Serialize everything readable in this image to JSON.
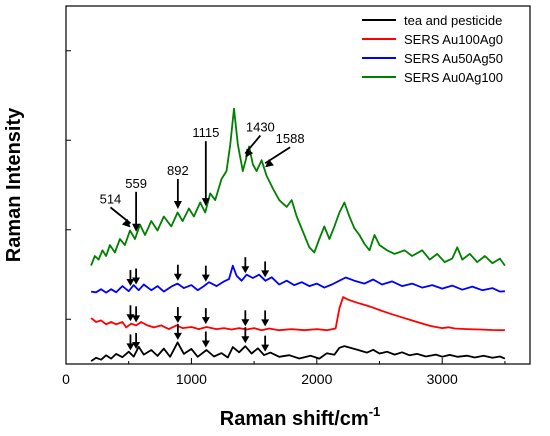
{
  "chart_data": {
    "type": "line",
    "xlabel": "Raman shift/cm",
    "xlabel_sup": "-1",
    "ylabel": "Raman Intensity",
    "xlim": [
      0,
      3700
    ],
    "x_ticks": [
      0,
      1000,
      2000,
      3000
    ],
    "y_ticks_shown": false,
    "legend_position": "top-right",
    "series": [
      {
        "name": "tea and pesticide",
        "color": "#000000",
        "points": [
          [
            200,
            2.6
          ],
          [
            240,
            5.5
          ],
          [
            280,
            3.8
          ],
          [
            320,
            7.8
          ],
          [
            360,
            4.8
          ],
          [
            400,
            9
          ],
          [
            450,
            6.1
          ],
          [
            500,
            11
          ],
          [
            540,
            6.6
          ],
          [
            580,
            15.4
          ],
          [
            620,
            8.4
          ],
          [
            680,
            12.5
          ],
          [
            730,
            7.2
          ],
          [
            780,
            13.8
          ],
          [
            830,
            6.4
          ],
          [
            890,
            19.3
          ],
          [
            940,
            9
          ],
          [
            1000,
            13.5
          ],
          [
            1050,
            6.4
          ],
          [
            1120,
            12.5
          ],
          [
            1180,
            6.7
          ],
          [
            1240,
            9.7
          ],
          [
            1290,
            5.8
          ],
          [
            1330,
            15.1
          ],
          [
            1380,
            10.5
          ],
          [
            1430,
            15.9
          ],
          [
            1480,
            9.4
          ],
          [
            1530,
            14
          ],
          [
            1580,
            8
          ],
          [
            1630,
            10.2
          ],
          [
            1700,
            6.4
          ],
          [
            1780,
            7.9
          ],
          [
            1860,
            4.9
          ],
          [
            1950,
            7.4
          ],
          [
            2020,
            4.8
          ],
          [
            2080,
            9.6
          ],
          [
            2140,
            8.3
          ],
          [
            2180,
            14.5
          ],
          [
            2220,
            16
          ],
          [
            2270,
            14.4
          ],
          [
            2330,
            12.5
          ],
          [
            2400,
            10.2
          ],
          [
            2450,
            12.7
          ],
          [
            2500,
            9.4
          ],
          [
            2560,
            11
          ],
          [
            2620,
            8.4
          ],
          [
            2680,
            10.5
          ],
          [
            2740,
            7.8
          ],
          [
            2800,
            9
          ],
          [
            2870,
            6.7
          ],
          [
            2950,
            8.4
          ],
          [
            3000,
            6.5
          ],
          [
            3060,
            8.1
          ],
          [
            3120,
            6.4
          ],
          [
            3200,
            7.4
          ],
          [
            3260,
            5.8
          ],
          [
            3330,
            7.4
          ],
          [
            3400,
            5.5
          ],
          [
            3460,
            6.7
          ],
          [
            3500,
            4.8
          ]
        ]
      },
      {
        "name": "SERS Au100Ag0",
        "color": "#ff0000",
        "points": [
          [
            200,
            41
          ],
          [
            240,
            37.5
          ],
          [
            280,
            39
          ],
          [
            320,
            35.5
          ],
          [
            360,
            37.5
          ],
          [
            400,
            35.5
          ],
          [
            450,
            37.5
          ],
          [
            480,
            32.7
          ],
          [
            520,
            36
          ],
          [
            560,
            34.5
          ],
          [
            600,
            37.5
          ],
          [
            650,
            34.5
          ],
          [
            700,
            32.7
          ],
          [
            760,
            34.5
          ],
          [
            820,
            31.2
          ],
          [
            880,
            34.5
          ],
          [
            930,
            32.1
          ],
          [
            1000,
            33.1
          ],
          [
            1060,
            31.2
          ],
          [
            1120,
            33.1
          ],
          [
            1200,
            31.2
          ],
          [
            1260,
            32.1
          ],
          [
            1320,
            30.8
          ],
          [
            1380,
            32.1
          ],
          [
            1440,
            30.8
          ],
          [
            1500,
            32.1
          ],
          [
            1560,
            30.2
          ],
          [
            1620,
            31.7
          ],
          [
            1700,
            30.2
          ],
          [
            1800,
            31.2
          ],
          [
            1900,
            30.2
          ],
          [
            2000,
            31.2
          ],
          [
            2080,
            30.2
          ],
          [
            2150,
            31.7
          ],
          [
            2180,
            49.8
          ],
          [
            2210,
            59.8
          ],
          [
            2250,
            57.5
          ],
          [
            2300,
            55.6
          ],
          [
            2350,
            53.8
          ],
          [
            2400,
            52.2
          ],
          [
            2450,
            50.3
          ],
          [
            2500,
            48.3
          ],
          [
            2550,
            46.3
          ],
          [
            2600,
            44.4
          ],
          [
            2650,
            42.7
          ],
          [
            2700,
            40.9
          ],
          [
            2750,
            39.2
          ],
          [
            2800,
            37.5
          ],
          [
            2850,
            35.8
          ],
          [
            2900,
            34.2
          ],
          [
            2950,
            33.1
          ],
          [
            3000,
            32.1
          ],
          [
            3050,
            32.8
          ],
          [
            3100,
            31.7
          ],
          [
            3200,
            31.2
          ],
          [
            3300,
            30.8
          ],
          [
            3400,
            30.4
          ],
          [
            3500,
            30.2
          ]
        ]
      },
      {
        "name": "SERS Au50Ag50",
        "color": "#0000ff",
        "points": [
          [
            200,
            64.7
          ],
          [
            240,
            64.1
          ],
          [
            280,
            66.9
          ],
          [
            320,
            63.8
          ],
          [
            360,
            66.9
          ],
          [
            400,
            64.1
          ],
          [
            450,
            69.6
          ],
          [
            500,
            65.1
          ],
          [
            540,
            70.5
          ],
          [
            580,
            66
          ],
          [
            620,
            71.1
          ],
          [
            680,
            66
          ],
          [
            730,
            69.6
          ],
          [
            780,
            64.7
          ],
          [
            840,
            69.2
          ],
          [
            890,
            71.9
          ],
          [
            940,
            67.8
          ],
          [
            1000,
            70.5
          ],
          [
            1050,
            66
          ],
          [
            1100,
            69.6
          ],
          [
            1140,
            73.1
          ],
          [
            1200,
            69.6
          ],
          [
            1260,
            73.8
          ],
          [
            1300,
            75.9
          ],
          [
            1330,
            87.9
          ],
          [
            1360,
            78.8
          ],
          [
            1400,
            74.5
          ],
          [
            1440,
            79.8
          ],
          [
            1490,
            76.9
          ],
          [
            1540,
            79.8
          ],
          [
            1590,
            74.5
          ],
          [
            1640,
            77.5
          ],
          [
            1700,
            71.1
          ],
          [
            1760,
            74.5
          ],
          [
            1820,
            70.5
          ],
          [
            1880,
            73.1
          ],
          [
            1940,
            69.6
          ],
          [
            2000,
            71.9
          ],
          [
            2060,
            68.3
          ],
          [
            2120,
            71.1
          ],
          [
            2180,
            74.5
          ],
          [
            2230,
            77.3
          ],
          [
            2300,
            74.5
          ],
          [
            2380,
            71.9
          ],
          [
            2450,
            75.5
          ],
          [
            2520,
            71.1
          ],
          [
            2600,
            73.8
          ],
          [
            2680,
            69.6
          ],
          [
            2760,
            71.9
          ],
          [
            2840,
            68.3
          ],
          [
            2920,
            70.5
          ],
          [
            3000,
            67.4
          ],
          [
            3080,
            70.1
          ],
          [
            3160,
            66.4
          ],
          [
            3240,
            69.2
          ],
          [
            3320,
            66
          ],
          [
            3400,
            67.8
          ],
          [
            3460,
            64.7
          ],
          [
            3500,
            65.1
          ]
        ]
      },
      {
        "name": "SERS Au0Ag100",
        "color": "#008000",
        "points": [
          [
            200,
            88
          ],
          [
            230,
            96.5
          ],
          [
            260,
            93.3
          ],
          [
            290,
            101.6
          ],
          [
            320,
            96.5
          ],
          [
            350,
            106.3
          ],
          [
            390,
            99.7
          ],
          [
            430,
            111.7
          ],
          [
            470,
            106.3
          ],
          [
            510,
            119.3
          ],
          [
            550,
            111.7
          ],
          [
            590,
            124.6
          ],
          [
            630,
            115.3
          ],
          [
            680,
            127.7
          ],
          [
            730,
            119.3
          ],
          [
            780,
            131.8
          ],
          [
            840,
            123
          ],
          [
            890,
            135.4
          ],
          [
            930,
            127.7
          ],
          [
            980,
            139
          ],
          [
            1020,
            131.8
          ],
          [
            1070,
            144.4
          ],
          [
            1110,
            135.4
          ],
          [
            1150,
            152.5
          ],
          [
            1190,
            146.5
          ],
          [
            1240,
            165.4
          ],
          [
            1280,
            172.4
          ],
          [
            1310,
            196.5
          ],
          [
            1340,
            228.3
          ],
          [
            1370,
            196.5
          ],
          [
            1410,
            172.4
          ],
          [
            1440,
            185.3
          ],
          [
            1460,
            194.4
          ],
          [
            1490,
            178.3
          ],
          [
            1520,
            172.4
          ],
          [
            1560,
            182.2
          ],
          [
            1600,
            168.1
          ],
          [
            1650,
            156.9
          ],
          [
            1700,
            146.5
          ],
          [
            1760,
            140.4
          ],
          [
            1800,
            146.5
          ],
          [
            1840,
            131.8
          ],
          [
            1900,
            115.3
          ],
          [
            1940,
            104.3
          ],
          [
            1980,
            99.7
          ],
          [
            2020,
            111.7
          ],
          [
            2060,
            123
          ],
          [
            2100,
            111.7
          ],
          [
            2140,
            123
          ],
          [
            2180,
            135.4
          ],
          [
            2220,
            144.4
          ],
          [
            2260,
            131.8
          ],
          [
            2300,
            121.3
          ],
          [
            2340,
            115.3
          ],
          [
            2380,
            107.3
          ],
          [
            2420,
            101.6
          ],
          [
            2460,
            115.3
          ],
          [
            2500,
            106.3
          ],
          [
            2560,
            101.6
          ],
          [
            2620,
            98.4
          ],
          [
            2700,
            101.6
          ],
          [
            2760,
            96.5
          ],
          [
            2840,
            101.6
          ],
          [
            2900,
            93.3
          ],
          [
            2960,
            98.4
          ],
          [
            3020,
            91.1
          ],
          [
            3080,
            94.2
          ],
          [
            3120,
            104.3
          ],
          [
            3160,
            93.3
          ],
          [
            3220,
            98.4
          ],
          [
            3280,
            91.1
          ],
          [
            3340,
            96.5
          ],
          [
            3400,
            90.1
          ],
          [
            3460,
            94.2
          ],
          [
            3500,
            88
          ]
        ]
      }
    ],
    "peak_labels": [
      {
        "label": "514",
        "x": 514
      },
      {
        "label": "559",
        "x": 559
      },
      {
        "label": "892",
        "x": 892
      },
      {
        "label": "1115",
        "x": 1115
      },
      {
        "label": "1430",
        "x": 1430
      },
      {
        "label": "1588",
        "x": 1588
      }
    ],
    "marker_arrows_x": [
      514,
      559,
      892,
      1115,
      1430,
      1588
    ]
  }
}
